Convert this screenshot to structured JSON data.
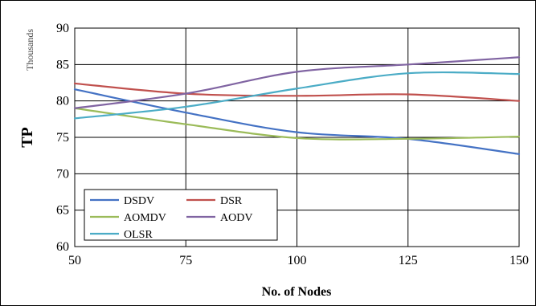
{
  "chart_data": {
    "type": "line",
    "x": [
      50,
      75,
      100,
      125,
      150
    ],
    "series": [
      {
        "name": "DSDV",
        "color": "#4472c4",
        "values": [
          81.6,
          78.4,
          75.7,
          74.8,
          72.7
        ]
      },
      {
        "name": "DSR",
        "color": "#c0504d",
        "values": [
          82.4,
          81.0,
          80.7,
          80.9,
          80.0
        ]
      },
      {
        "name": "AOMDV",
        "color": "#9bbb59",
        "values": [
          79.0,
          76.8,
          74.9,
          74.8,
          75.1
        ]
      },
      {
        "name": "AODV",
        "color": "#8064a2",
        "values": [
          79.0,
          81.0,
          84.0,
          85.0,
          86.0
        ]
      },
      {
        "name": "OLSR",
        "color": "#4bacc6",
        "values": [
          77.6,
          79.2,
          81.7,
          83.8,
          83.7
        ]
      }
    ],
    "xlabel": "No. of Nodes",
    "ylabel": "TP",
    "yunit": "Thousands",
    "xlim": [
      50,
      150
    ],
    "ylim": [
      60,
      90
    ],
    "xticks": [
      50,
      75,
      100,
      125,
      150
    ],
    "yticks": [
      60,
      65,
      70,
      75,
      80,
      85,
      90
    ],
    "grid": true,
    "legend": "bottom-left"
  }
}
